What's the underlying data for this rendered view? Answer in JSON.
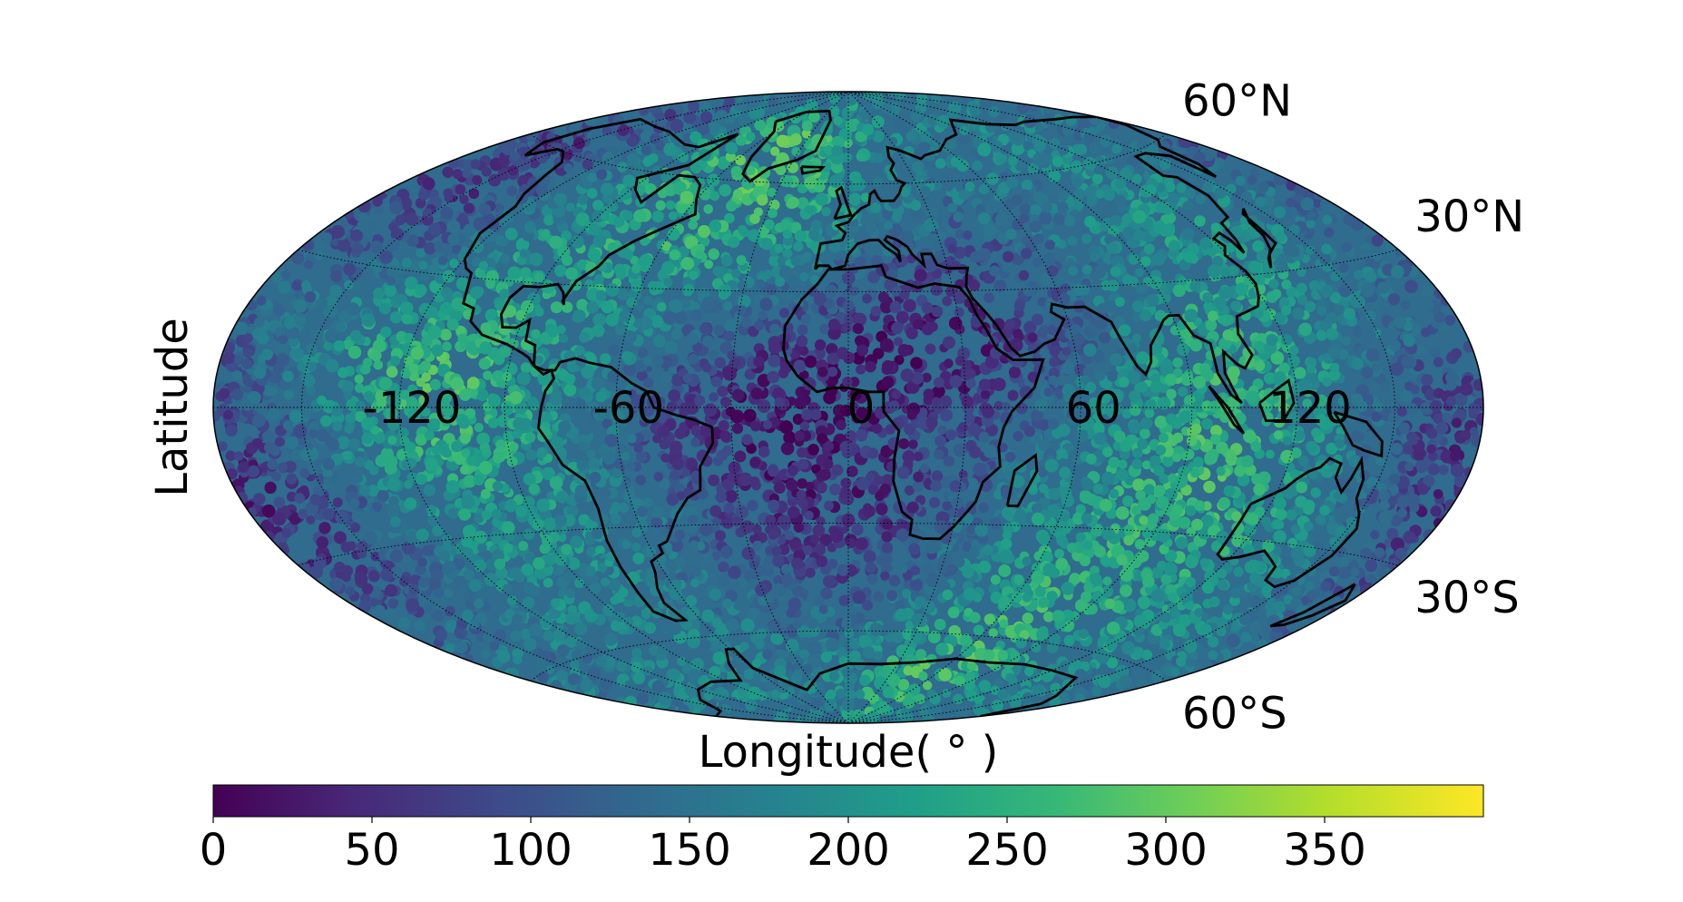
{
  "chart_data": {
    "type": "heatmap",
    "projection": "hammer",
    "title": "",
    "xlabel": "Longitude( $^\\circ$ )",
    "xlabel_display": "Longitude( ° )",
    "ylabel": "Latitude",
    "longitude_ticks": [
      "-120",
      "-60",
      "0",
      "60",
      "120"
    ],
    "longitude_tick_values": [
      -120,
      -60,
      0,
      60,
      120
    ],
    "latitude_ticks": [
      "60°N",
      "30°N",
      "30°S",
      "60°S"
    ],
    "latitude_tick_values": [
      60,
      30,
      -30,
      -60
    ],
    "grid": true,
    "colormap": "viridis",
    "colorbar": {
      "orientation": "horizontal",
      "placement": "bottom",
      "ticks": [
        "0",
        "50",
        "100",
        "150",
        "200",
        "250",
        "300",
        "350"
      ],
      "tick_values": [
        0,
        50,
        100,
        150,
        200,
        250,
        300,
        350
      ],
      "range": [
        0,
        400
      ]
    },
    "value_pattern": {
      "description_of_field_only": "high values form a sinusoidal band",
      "high_band_centers": [
        {
          "lon": -120,
          "lat": 0,
          "value": 300
        },
        {
          "lon": 120,
          "lat": 0,
          "value": 320
        },
        {
          "lon": -40,
          "lat": 60,
          "value": 280
        },
        {
          "lon": 40,
          "lat": -60,
          "value": 300
        }
      ],
      "low_band_centers": [
        {
          "lon": -150,
          "lat": 50,
          "value": 40
        },
        {
          "lon": 30,
          "lat": 20,
          "value": 30
        },
        {
          "lon": -30,
          "lat": 0,
          "value": 50
        },
        {
          "lon": 150,
          "lat": 0,
          "value": 30
        },
        {
          "lon": -160,
          "lat": -20,
          "value": 20
        },
        {
          "lon": 10,
          "lat": -40,
          "value": 20
        }
      ]
    },
    "colors": {
      "viridis_stops": [
        "#440154",
        "#482878",
        "#3e4989",
        "#31688e",
        "#26828e",
        "#1f9e89",
        "#35b779",
        "#6ece58",
        "#b5de2b",
        "#fde725"
      ],
      "coastline": "#000000",
      "grid": "#000000"
    }
  }
}
